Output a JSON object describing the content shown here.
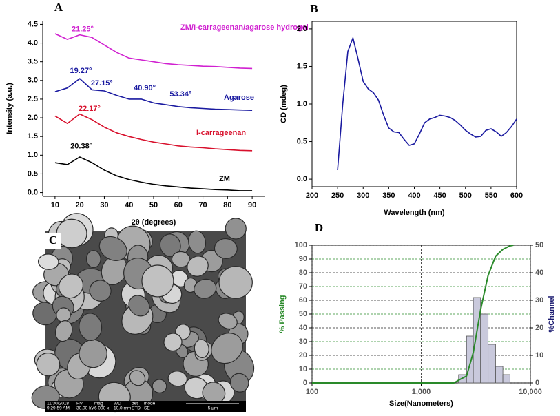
{
  "chart_data": [
    {
      "type": "line",
      "title": "A",
      "xlabel": "2θ (degrees)",
      "ylabel": "Intensity (a.u.)",
      "xlim": [
        5,
        95
      ],
      "xticks": [
        10,
        20,
        30,
        40,
        50,
        60,
        70,
        80,
        90
      ],
      "ylim": [
        -0.1,
        4.6
      ],
      "yticks": [
        {
          "value": 0,
          "label": "0.0"
        },
        0.5,
        {
          "value": 1,
          "label": "1.0"
        },
        1.5,
        {
          "value": 2,
          "label": "2.0"
        },
        2.5,
        {
          "value": 3,
          "label": "3.0"
        },
        3.5,
        {
          "value": 4,
          "label": "4.0"
        },
        4.5
      ],
      "x": [
        10,
        15,
        20,
        25,
        30,
        35,
        40,
        45,
        50,
        55,
        60,
        65,
        70,
        75,
        80,
        85,
        90
      ],
      "series": [
        {
          "name": "ZM",
          "color": "#000000",
          "values": [
            0.8,
            0.75,
            0.95,
            0.8,
            0.6,
            0.45,
            0.35,
            0.28,
            0.22,
            0.18,
            0.15,
            0.12,
            0.1,
            0.08,
            0.07,
            0.05,
            0.05
          ]
        },
        {
          "name": "I-carrageenan",
          "color": "#d8102c",
          "values": [
            2.05,
            1.85,
            2.1,
            1.95,
            1.75,
            1.6,
            1.5,
            1.42,
            1.35,
            1.3,
            1.25,
            1.22,
            1.2,
            1.17,
            1.15,
            1.13,
            1.12
          ]
        },
        {
          "name": "Agarose",
          "color": "#1a1aa0",
          "values": [
            2.7,
            2.8,
            3.05,
            2.75,
            2.72,
            2.6,
            2.5,
            2.5,
            2.4,
            2.35,
            2.3,
            2.27,
            2.25,
            2.23,
            2.22,
            2.21,
            2.2
          ]
        },
        {
          "name": "ZM/I-carrageenan/agarose hydrogel",
          "color": "#d020d0",
          "values": [
            4.25,
            4.1,
            4.22,
            4.15,
            3.95,
            3.75,
            3.6,
            3.55,
            3.5,
            3.45,
            3.42,
            3.4,
            3.38,
            3.37,
            3.35,
            3.33,
            3.32
          ]
        }
      ],
      "annotations": [
        {
          "text": "20.38°",
          "x": 20.7,
          "y": 1.23,
          "color": "#000000"
        },
        {
          "text": "22.17°",
          "x": 24,
          "y": 2.24,
          "color": "#d8102c"
        },
        {
          "text": "19.27°",
          "x": 20.5,
          "y": 3.25,
          "color": "#1a1aa0"
        },
        {
          "text": "27.15°",
          "x": 29,
          "y": 2.92,
          "color": "#1a1aa0"
        },
        {
          "text": "40.90°",
          "x": 46.4,
          "y": 2.79,
          "color": "#1a1aa0"
        },
        {
          "text": "53.34°",
          "x": 61,
          "y": 2.63,
          "color": "#1a1aa0"
        },
        {
          "text": "21.25°",
          "x": 21.2,
          "y": 4.37,
          "color": "#d020d0"
        }
      ]
    },
    {
      "type": "line",
      "title": "B",
      "xlabel": "Wavelength (nm)",
      "ylabel": "CD (mdeg)",
      "frame": true,
      "xlim": [
        200,
        600
      ],
      "xticks": [
        200,
        250,
        300,
        350,
        400,
        450,
        500,
        550,
        600
      ],
      "ylim": [
        -0.1,
        2.1
      ],
      "yticks": [
        {
          "value": 0,
          "label": "0.0"
        },
        0.5,
        {
          "value": 1,
          "label": "1.0"
        },
        1.5,
        {
          "value": 2,
          "label": "2.0"
        }
      ],
      "x": [
        250,
        260,
        270,
        280,
        290,
        300,
        310,
        320,
        330,
        340,
        350,
        360,
        370,
        380,
        390,
        400,
        410,
        420,
        430,
        440,
        450,
        460,
        470,
        480,
        490,
        500,
        510,
        520,
        530,
        540,
        550,
        560,
        570,
        580,
        590,
        600
      ],
      "series": [
        {
          "name": null,
          "color": "#1a1aa0",
          "values": [
            0.12,
            1.0,
            1.7,
            1.88,
            1.6,
            1.3,
            1.2,
            1.15,
            1.05,
            0.85,
            0.68,
            0.63,
            0.62,
            0.53,
            0.45,
            0.47,
            0.6,
            0.75,
            0.8,
            0.82,
            0.85,
            0.84,
            0.82,
            0.78,
            0.72,
            0.65,
            0.6,
            0.56,
            0.57,
            0.65,
            0.67,
            0.63,
            0.57,
            0.62,
            0.7,
            0.8
          ]
        }
      ]
    },
    {
      "type": "image",
      "title": "C",
      "info_bar": [
        {
          "label": "11/30/2018",
          "value": "9:29:59 AM"
        },
        {
          "label": "HV",
          "value": "30.00 kV"
        },
        {
          "label": "mag",
          "value": "6 000 x"
        },
        {
          "label": "WD",
          "value": "10.0 mm"
        },
        {
          "label": "det",
          "value": "ETD"
        },
        {
          "label": "mode",
          "value": "SE"
        }
      ],
      "scale_bar": "5 μm"
    },
    {
      "type": "histogram",
      "title": "D",
      "xlabel": "Size(Nanometers)",
      "ylabel": "% Passing",
      "y2label": "%Channel",
      "log_x": true,
      "grid": true,
      "xlim": [
        100,
        10000
      ],
      "xticks": [
        100,
        {
          "value": 1000,
          "label": "1,000"
        },
        {
          "value": 10000,
          "label": "10,000"
        }
      ],
      "ylim": [
        0,
        100
      ],
      "yticks": [
        0,
        10,
        20,
        30,
        40,
        50,
        60,
        70,
        80,
        90,
        100
      ],
      "y2lim": [
        0,
        50
      ],
      "y2ticks": [
        0,
        10,
        20,
        30,
        40,
        50
      ],
      "bins": [
        2200,
        2600,
        3000,
        3500,
        4100,
        4800,
        5600,
        6500
      ],
      "counts": [
        3,
        17,
        31,
        25,
        14,
        6,
        3
      ],
      "counts_axis": "y2",
      "bar_color": "#c9c9dc",
      "series": [
        {
          "name": "% Passing",
          "color": "#2a8a2a",
          "x": [
            100,
            1000,
            2000,
            2200,
            2600,
            3000,
            3500,
            4100,
            4800,
            5600,
            6500,
            7000
          ],
          "values": [
            0,
            0,
            0,
            2,
            5,
            22,
            53,
            78,
            92,
            97,
            99.5,
            100
          ]
        }
      ]
    }
  ]
}
